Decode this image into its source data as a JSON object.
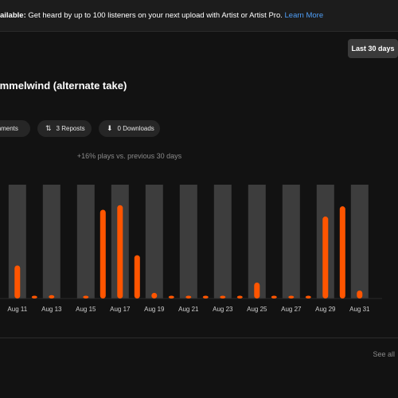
{
  "banner": {
    "strong": "ailable:",
    "text": " Get heard by up to 100 listeners on your next upload with Artist or Artist Pro.",
    "link": "Learn More"
  },
  "range_button": "Last 30 days",
  "track_title": "immelwind (alternate take)",
  "stats": {
    "comments": "omments",
    "reposts": "3 Reposts",
    "downloads": "0 Downloads"
  },
  "delta_text": "+16% plays vs. previous 30 days",
  "see_all": "See all",
  "colors": {
    "accent": "#ff5500",
    "previous": "#3d3d3d",
    "background": "#121212",
    "link": "#4f9ff8"
  },
  "icons": {
    "repost": "repost-icon",
    "download": "download-icon",
    "comment": "comment-icon"
  },
  "chart_data": {
    "type": "bar",
    "title": "",
    "xlabel": "",
    "ylabel": "",
    "ylim": [
      0,
      100
    ],
    "grid": false,
    "x_tick_labels": [
      "Aug 11",
      "Aug 13",
      "Aug 15",
      "Aug 17",
      "Aug 19",
      "Aug 21",
      "Aug 23",
      "Aug 25",
      "Aug 27",
      "Aug 29",
      "Aug 31"
    ],
    "series": [
      {
        "values": [
          0,
          29,
          2,
          3,
          0,
          1,
          78,
          82,
          38,
          5,
          2,
          1,
          1,
          1,
          1,
          14,
          1,
          1,
          1,
          72,
          81,
          7
        ]
      },
      {
        "values": [
          100,
          100,
          100,
          100,
          100,
          100,
          100,
          100,
          100,
          100,
          100
        ]
      }
    ]
  }
}
